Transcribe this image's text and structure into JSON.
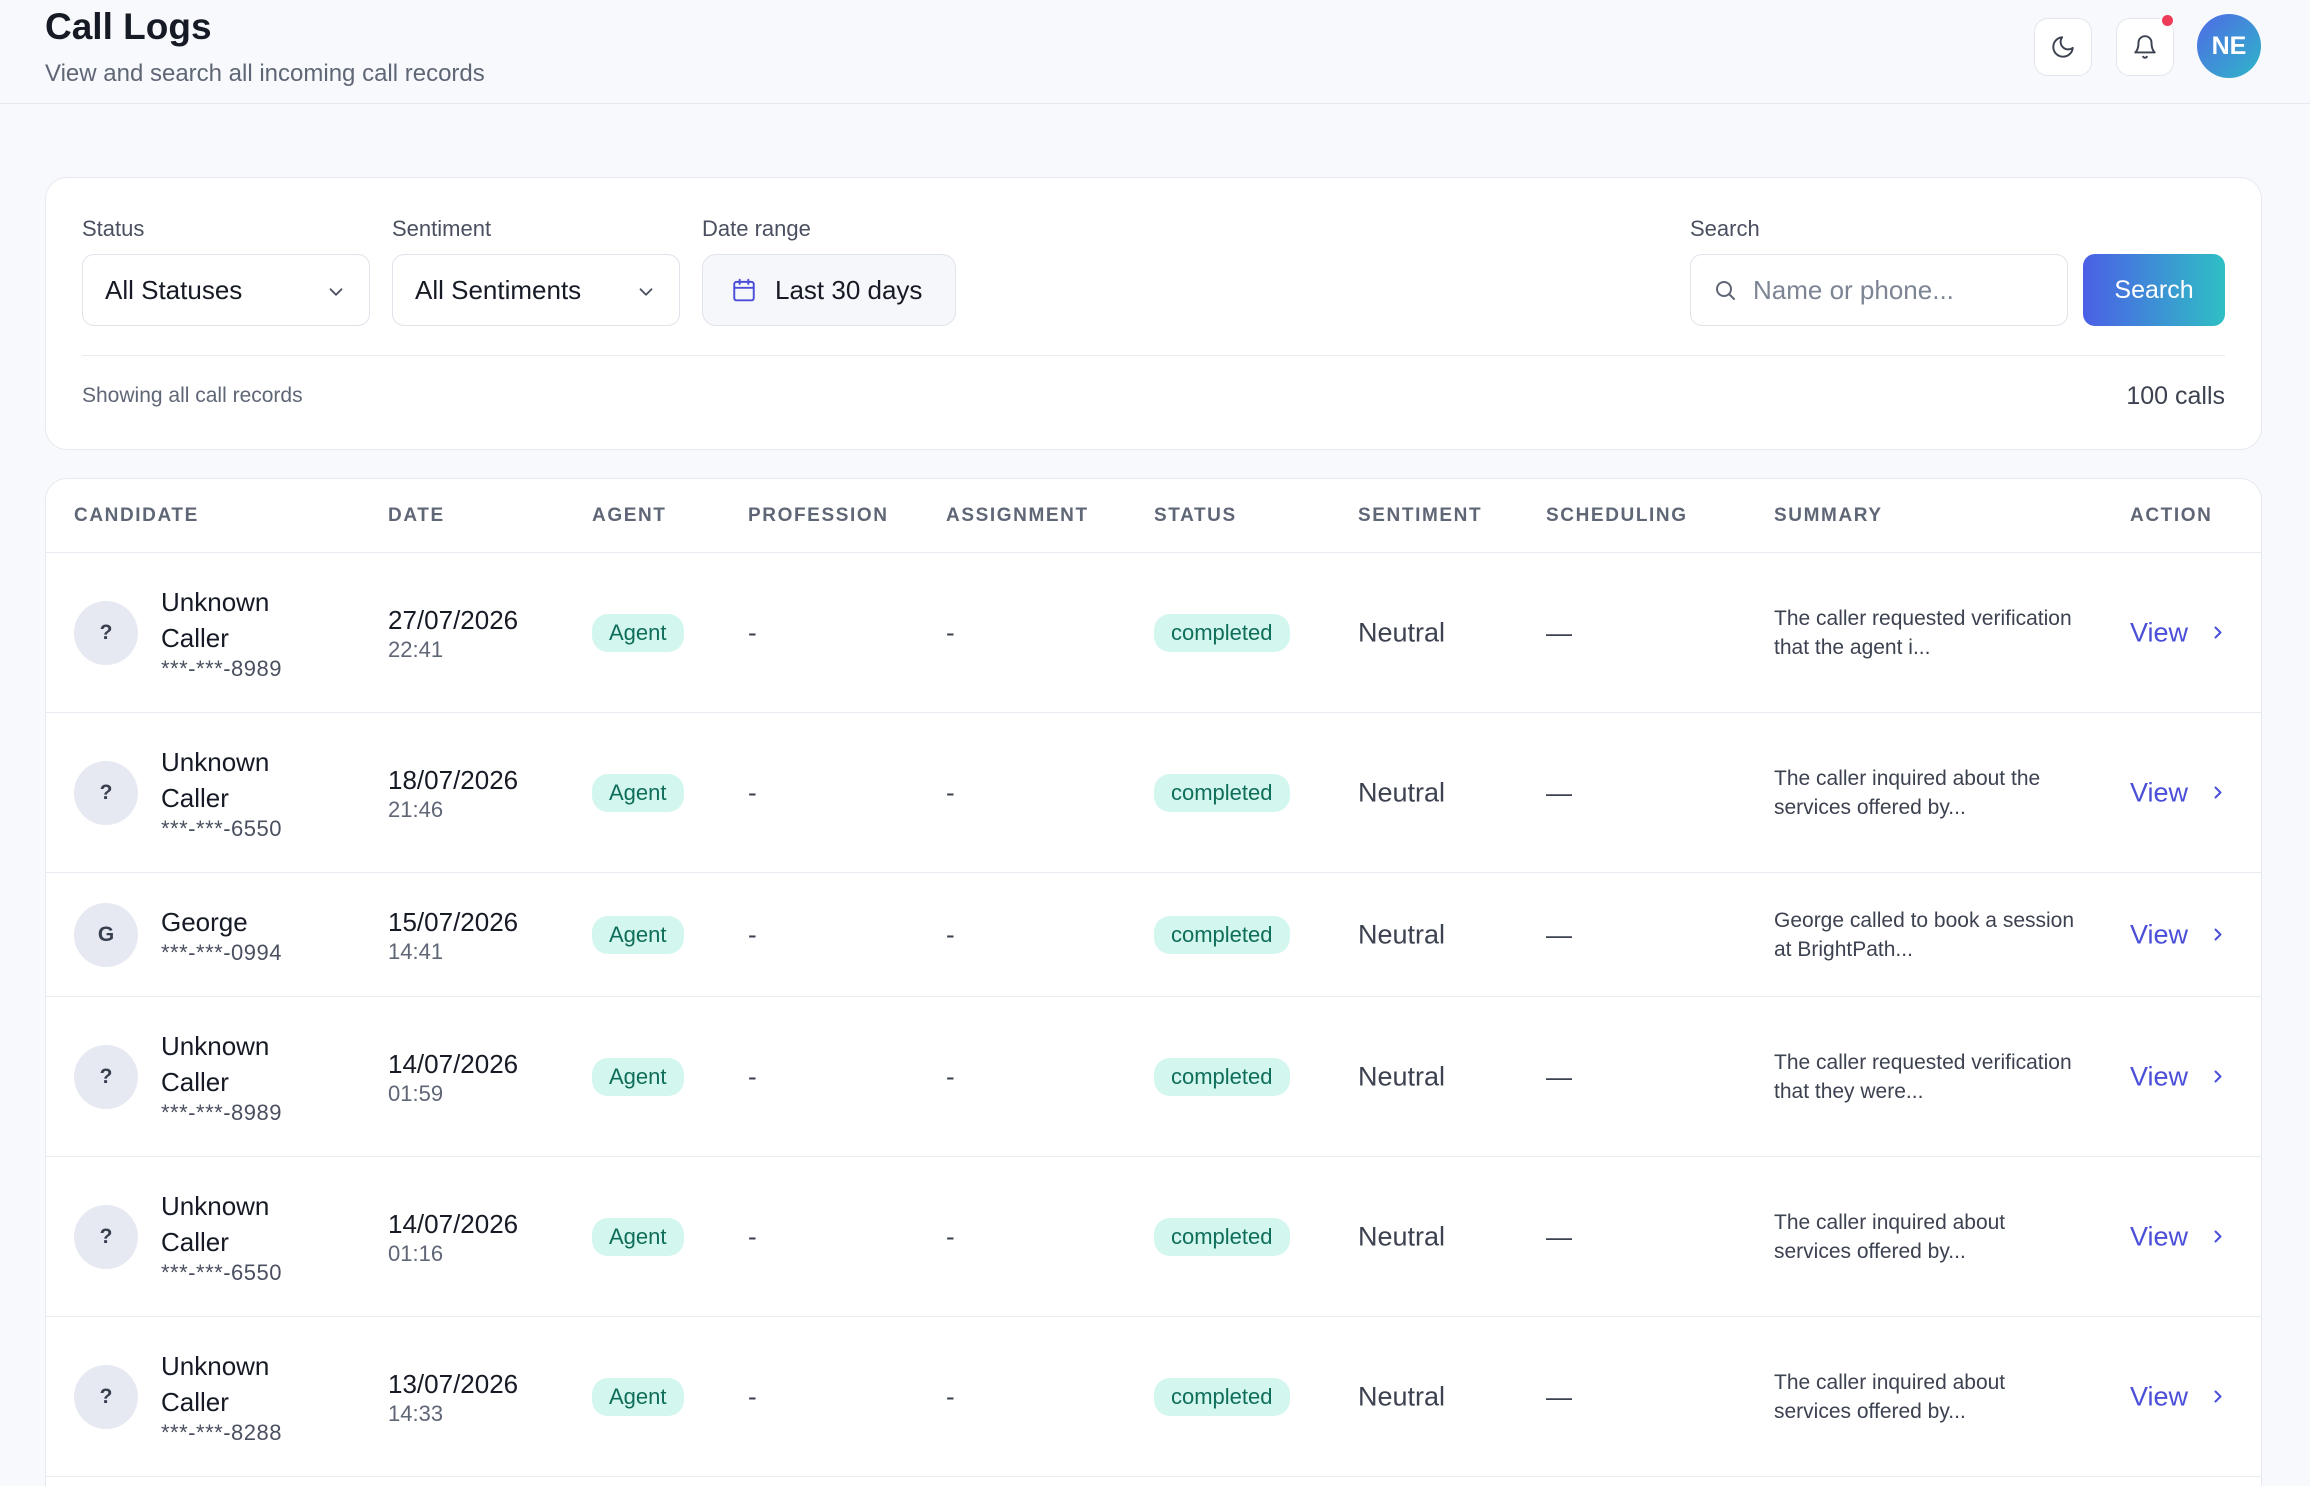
{
  "header": {
    "title": "Call Logs",
    "subtitle": "View and search all incoming call records",
    "user_initials": "NE"
  },
  "filters": {
    "status_label": "Status",
    "status_value": "All Statuses",
    "sentiment_label": "Sentiment",
    "sentiment_value": "All Sentiments",
    "date_label": "Date range",
    "date_value": "Last 30 days",
    "search_label": "Search",
    "search_placeholder": "Name or phone...",
    "search_button": "Search",
    "showing_text": "Showing all call records",
    "count_text": "100 calls"
  },
  "table": {
    "columns": [
      "CANDIDATE",
      "DATE",
      "AGENT",
      "PROFESSION",
      "ASSIGNMENT",
      "STATUS",
      "SENTIMENT",
      "SCHEDULING",
      "SUMMARY",
      "ACTION"
    ],
    "rows": [
      {
        "initial": "?",
        "name": "Unknown Caller",
        "phone": "***-***-8989",
        "date": "27/07/2026",
        "time": "22:41",
        "agent": "Agent",
        "profession": "-",
        "assignment": "-",
        "status": "completed",
        "sentiment": "Neutral",
        "scheduling": "—",
        "summary": "The caller requested verification that the agent i...",
        "action": "View"
      },
      {
        "initial": "?",
        "name": "Unknown Caller",
        "phone": "***-***-6550",
        "date": "18/07/2026",
        "time": "21:46",
        "agent": "Agent",
        "profession": "-",
        "assignment": "-",
        "status": "completed",
        "sentiment": "Neutral",
        "scheduling": "—",
        "summary": "The caller inquired about the services offered by...",
        "action": "View"
      },
      {
        "initial": "G",
        "name": "George",
        "phone": "***-***-0994",
        "date": "15/07/2026",
        "time": "14:41",
        "agent": "Agent",
        "profession": "-",
        "assignment": "-",
        "status": "completed",
        "sentiment": "Neutral",
        "scheduling": "—",
        "summary": "George called to book a session at BrightPath...",
        "action": "View"
      },
      {
        "initial": "?",
        "name": "Unknown Caller",
        "phone": "***-***-8989",
        "date": "14/07/2026",
        "time": "01:59",
        "agent": "Agent",
        "profession": "-",
        "assignment": "-",
        "status": "completed",
        "sentiment": "Neutral",
        "scheduling": "—",
        "summary": "The caller requested verification that they were...",
        "action": "View"
      },
      {
        "initial": "?",
        "name": "Unknown Caller",
        "phone": "***-***-6550",
        "date": "14/07/2026",
        "time": "01:16",
        "agent": "Agent",
        "profession": "-",
        "assignment": "-",
        "status": "completed",
        "sentiment": "Neutral",
        "scheduling": "—",
        "summary": "The caller inquired about services offered by...",
        "action": "View"
      },
      {
        "initial": "?",
        "name": "Unknown Caller",
        "phone": "***-***-8288",
        "date": "13/07/2026",
        "time": "14:33",
        "agent": "Agent",
        "profession": "-",
        "assignment": "-",
        "status": "completed",
        "sentiment": "Neutral",
        "scheduling": "—",
        "summary": "The caller inquired about services offered by...",
        "action": "View"
      }
    ]
  },
  "colors": {
    "accent": "#4b4fd8",
    "badge_bg": "#d3f6ef",
    "badge_text": "#0f6e5a",
    "notification_dot": "#ee3b5a"
  },
  "icons": [
    "moon-icon",
    "bell-icon",
    "chevron-down-icon",
    "calendar-icon",
    "search-icon",
    "chevron-right-icon"
  ]
}
